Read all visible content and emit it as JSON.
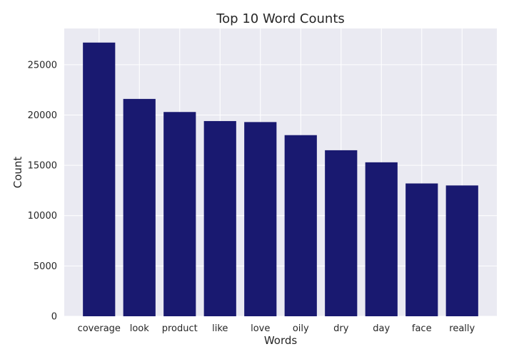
{
  "chart_data": {
    "type": "bar",
    "title": "Top 10 Word Counts",
    "xlabel": "Words",
    "ylabel": "Count",
    "categories": [
      "coverage",
      "look",
      "product",
      "like",
      "love",
      "oily",
      "dry",
      "day",
      "face",
      "really"
    ],
    "values": [
      27200,
      21600,
      20300,
      19400,
      19300,
      18000,
      16500,
      15300,
      13200,
      13000
    ],
    "yticks": [
      0,
      5000,
      10000,
      15000,
      20000,
      25000
    ],
    "ylim": [
      0,
      28600
    ],
    "grid": true,
    "bar_color": "#191970",
    "plot_background": "#eaeaf2",
    "grid_color": "#ffffff"
  }
}
